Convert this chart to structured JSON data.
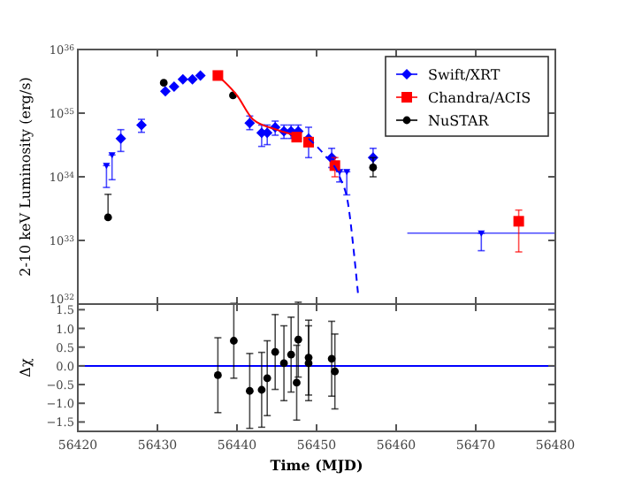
{
  "chart_data": [
    {
      "type": "scatter",
      "ylabel": "2-10 keV Luminosity (erg/s)",
      "log": "y",
      "xlim": [
        56420,
        56480
      ],
      "xticks": [
        56420,
        56430,
        56440,
        56450,
        56460,
        56470,
        56480
      ],
      "ylim": [
        1e+32,
        1e+36
      ],
      "yticks": [
        {
          "value": 1e+32,
          "label": "10$^{32}$"
        },
        {
          "value": 1e+33,
          "label": "10$^{33}$"
        },
        {
          "value": 1e+34,
          "label": "10$^{34}$"
        },
        {
          "value": 1e+35,
          "label": "10$^{35}$"
        },
        {
          "value": 1e+36,
          "label": "10$^{36}$"
        }
      ],
      "tick_labels": "y",
      "grid": false,
      "legend": "top right",
      "series": [
        {
          "name": "Swift/XRT",
          "color": "#0000ff",
          "marker": "diamond",
          "x": [
            56425.4,
            56428.0,
            56431.0,
            56432.1,
            56433.2,
            56434.4,
            56435.4,
            56441.6,
            56443.1,
            56443.8,
            56444.8,
            56445.9,
            56446.8,
            56447.7,
            56449.0,
            56451.9,
            56457.1
          ],
          "values": [
            4e+34,
            6.5e+34,
            2.2e+35,
            2.6e+35,
            3.4e+35,
            3.4e+35,
            3.9e+35,
            7e+34,
            4.9e+34,
            4.9e+34,
            6e+34,
            5.2e+34,
            5.2e+34,
            5.2e+34,
            4e+34,
            2e+34,
            2e+34
          ],
          "errors": [
            [
              2.5e+34,
              5.5e+34
            ],
            [
              5e+34,
              8e+34
            ],
            null,
            null,
            null,
            null,
            null,
            [
              5.5e+34,
              9e+34
            ],
            [
              3e+34,
              6.5e+34
            ],
            [
              3.2e+34,
              6.5e+34
            ],
            [
              4.5e+34,
              7.5e+34
            ],
            [
              4e+34,
              6.5e+34
            ],
            [
              4e+34,
              6.5e+34
            ],
            [
              4e+34,
              6.5e+34
            ],
            [
              2e+34,
              6e+34
            ],
            [
              1.4e+34,
              2.8e+34
            ],
            [
              1.4e+34,
              2.8e+34
            ]
          ]
        },
        {
          "color": "#0000ff",
          "marker": "triangle",
          "x": [
            56423.6,
            56424.3,
            56452.9,
            56453.8,
            56470.7
          ],
          "values": [
            1.5e+34,
            2.2e+34,
            1.2e+34,
            1.2e+34,
            1.3e+33
          ],
          "errors": [
            [
              6.8e+33,
              1.5e+34
            ],
            [
              9e+33,
              2.2e+34
            ],
            [
              8.3e+33,
              1.2e+34
            ],
            [
              5.2e+33,
              1.2e+34
            ],
            [
              6.9e+32,
              1.3e+33
            ]
          ],
          "xerrors": [
            null,
            null,
            null,
            null,
            [
              56461.4,
              56480
            ]
          ]
        },
        {
          "name": "Chandra/ACIS",
          "color": "#ff0000",
          "marker": "square",
          "x": [
            56437.6,
            56447.5,
            56449.0,
            56452.3,
            56475.4
          ],
          "values": [
            3.9e+35,
            4.2e+34,
            3.5e+34,
            1.5e+34,
            2e+33
          ],
          "errors": [
            null,
            null,
            null,
            [
              1e+34,
              2e+34
            ],
            [
              6.6e+32,
              3e+33
            ]
          ]
        },
        {
          "name": "NuSTAR",
          "color": "#000000",
          "marker": "circle",
          "x": [
            56423.8,
            56430.8,
            56439.5,
            56457.1
          ],
          "values": [
            2.3e+33,
            3e+35,
            1.9e+35,
            1.4e+34
          ],
          "errors": [
            [
              2.3e+33,
              5.3e+33
            ],
            null,
            null,
            [
              1e+34,
              2e+34
            ]
          ]
        },
        {
          "type": "line",
          "color": "#ff0000",
          "line_style": "solid",
          "marker": "none",
          "x": [
            56437.6,
            56440,
            56442,
            56445,
            56448
          ],
          "values": [
            3.9e+35,
            1.9e+35,
            8e+34,
            5.5e+34,
            4.3e+34
          ]
        },
        {
          "type": "line",
          "color": "#0000ff",
          "line_style": "dashed",
          "marker": "none",
          "x": [
            56449,
            56451,
            56452.9,
            56454,
            56454.7,
            56455.2
          ],
          "values": [
            4e+34,
            2.2e+34,
            1e+34,
            3.5e+33,
            6.3e+32,
            1.5e+32
          ]
        }
      ]
    },
    {
      "type": "scatter",
      "xlabel": "Time (MJD)",
      "ylabel": "Δχ",
      "xlim": [
        56420,
        56480
      ],
      "xticks": [
        56420,
        56430,
        56440,
        56450,
        56460,
        56470,
        56480
      ],
      "ylim": [
        -1.75,
        1.65
      ],
      "yticks": [
        {
          "value": -1.5,
          "label": "−1.5"
        },
        {
          "value": -1,
          "label": "−1.0"
        },
        {
          "value": -0.5,
          "label": "−0.5"
        },
        {
          "value": 0,
          "label": "0.0"
        },
        {
          "value": 0.5,
          "label": "0.5"
        },
        {
          "value": 1,
          "label": "1.0"
        },
        {
          "value": 1.5,
          "label": "1.5"
        }
      ],
      "grid": false,
      "ref_lines": [
        {
          "axis": "y",
          "value": 0,
          "color": "#0000ff"
        }
      ],
      "series": [
        {
          "color": "#000000",
          "marker": "circle",
          "x": [
            56437.6,
            56439.6,
            56441.6,
            56443.1,
            56443.8,
            56444.8,
            56445.9,
            56446.8,
            56447.5,
            56447.7,
            56449.0,
            56449.0,
            56451.9,
            56452.3
          ],
          "values": [
            -0.25,
            0.67,
            -0.67,
            -0.64,
            -0.33,
            0.37,
            0.07,
            0.3,
            -0.45,
            0.7,
            0.22,
            0.07,
            0.19,
            -0.15
          ],
          "errors": [
            1,
            1,
            1,
            1,
            1,
            1,
            1,
            1,
            1,
            1,
            1,
            1,
            1,
            1
          ]
        }
      ]
    }
  ]
}
